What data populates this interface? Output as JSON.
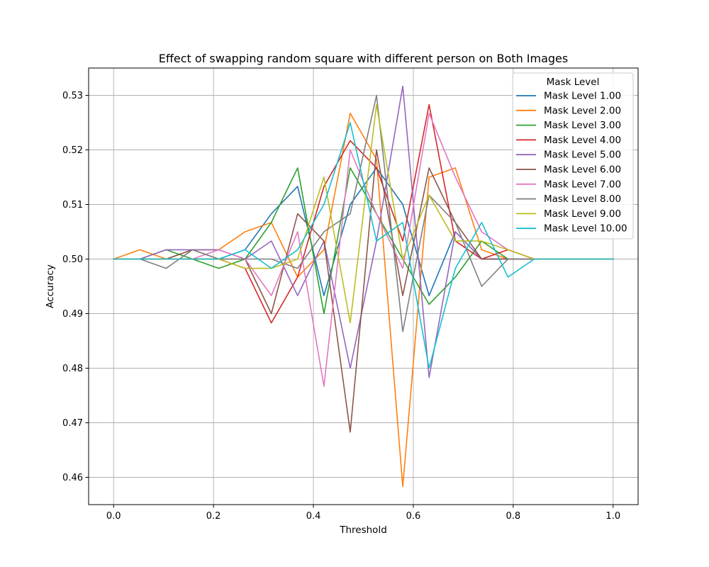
{
  "chart_data": {
    "type": "line",
    "title": "Effect of swapping random square with different person on Both Images",
    "xlabel": "Threshold",
    "ylabel": "Accuracy",
    "xlim": [
      -0.05,
      1.05
    ],
    "ylim": [
      0.455,
      0.535
    ],
    "xticks": [
      0.0,
      0.2,
      0.4,
      0.6,
      0.8,
      1.0
    ],
    "xtick_labels": [
      "0.0",
      "0.2",
      "0.4",
      "0.6",
      "0.8",
      "1.0"
    ],
    "yticks": [
      0.46,
      0.47,
      0.48,
      0.49,
      0.5,
      0.51,
      0.52,
      0.53
    ],
    "ytick_labels": [
      "0.46",
      "0.47",
      "0.48",
      "0.49",
      "0.50",
      "0.51",
      "0.52",
      "0.53"
    ],
    "grid": true,
    "legend": {
      "title": "Mask Level",
      "placement": "top-right"
    },
    "x": [
      0.0,
      0.0526,
      0.1053,
      0.1579,
      0.2105,
      0.2632,
      0.3158,
      0.3684,
      0.4211,
      0.4737,
      0.5263,
      0.5789,
      0.6316,
      0.6842,
      0.7368,
      0.7895,
      0.8421,
      0.8947,
      0.9474,
      1.0
    ],
    "series": [
      {
        "name": "Mask Level 1.00",
        "color": "#1f77b4",
        "values": [
          0.5,
          0.5,
          0.5,
          0.5,
          0.5,
          0.5017,
          0.5083,
          0.5133,
          0.4933,
          0.51,
          0.5167,
          0.51,
          0.4933,
          0.505,
          0.5,
          0.5,
          0.5,
          0.5,
          0.5,
          0.5
        ]
      },
      {
        "name": "Mask Level 2.00",
        "color": "#ff7f0e",
        "values": [
          0.5,
          0.5017,
          0.5,
          0.5017,
          0.5017,
          0.505,
          0.5067,
          0.4967,
          0.5017,
          0.5267,
          0.5183,
          0.4583,
          0.515,
          0.5167,
          0.5017,
          0.5,
          0.5,
          0.5,
          0.5,
          0.5
        ]
      },
      {
        "name": "Mask Level 3.00",
        "color": "#2ca02c",
        "values": [
          0.5,
          0.5,
          0.5017,
          0.5,
          0.4983,
          0.5,
          0.5067,
          0.5167,
          0.49,
          0.5167,
          0.5083,
          0.5,
          0.4917,
          0.4967,
          0.5033,
          0.5,
          0.5,
          0.5,
          0.5,
          0.5
        ]
      },
      {
        "name": "Mask Level 4.00",
        "color": "#d62728",
        "values": [
          0.5,
          0.5,
          0.5,
          0.5,
          0.5,
          0.4983,
          0.4883,
          0.4967,
          0.5133,
          0.5217,
          0.5167,
          0.5033,
          0.5283,
          0.5033,
          0.5,
          0.5017,
          0.5,
          0.5,
          0.5,
          0.5
        ]
      },
      {
        "name": "Mask Level 5.00",
        "color": "#9467bd",
        "values": [
          0.5,
          0.5,
          0.5017,
          0.5017,
          0.5017,
          0.5,
          0.5033,
          0.4933,
          0.5033,
          0.48,
          0.5033,
          0.5317,
          0.4783,
          0.505,
          0.5,
          0.5,
          0.5,
          0.5,
          0.5,
          0.5
        ]
      },
      {
        "name": "Mask Level 6.00",
        "color": "#8c564b",
        "values": [
          0.5,
          0.5,
          0.5,
          0.5017,
          0.5,
          0.5,
          0.49,
          0.5083,
          0.5033,
          0.4683,
          0.52,
          0.4933,
          0.5167,
          0.5067,
          0.5,
          0.5,
          0.5,
          0.5,
          0.5,
          0.5
        ]
      },
      {
        "name": "Mask Level 7.00",
        "color": "#e377c2",
        "values": [
          0.5,
          0.5,
          0.5,
          0.5,
          0.5017,
          0.5,
          0.4933,
          0.505,
          0.4767,
          0.52,
          0.5083,
          0.4983,
          0.5267,
          0.515,
          0.505,
          0.5017,
          0.5,
          0.5,
          0.5,
          0.5
        ]
      },
      {
        "name": "Mask Level 8.00",
        "color": "#7f7f7f",
        "values": [
          0.5,
          0.5,
          0.4983,
          0.5017,
          0.5,
          0.5,
          0.5,
          0.4983,
          0.505,
          0.5083,
          0.53,
          0.4867,
          0.5117,
          0.5067,
          0.495,
          0.5,
          0.5,
          0.5,
          0.5,
          0.5
        ]
      },
      {
        "name": "Mask Level 9.00",
        "color": "#bcbd22",
        "values": [
          0.5,
          0.5,
          0.5,
          0.5,
          0.5,
          0.4983,
          0.4983,
          0.5,
          0.515,
          0.4883,
          0.5283,
          0.5,
          0.5117,
          0.5033,
          0.5033,
          0.5017,
          0.5,
          0.5,
          0.5,
          0.5
        ]
      },
      {
        "name": "Mask Level 10.00",
        "color": "#17becf",
        "values": [
          0.5,
          0.5,
          0.5,
          0.5,
          0.5,
          0.5017,
          0.4983,
          0.5017,
          0.51,
          0.525,
          0.5033,
          0.5067,
          0.48,
          0.4983,
          0.5067,
          0.4967,
          0.5,
          0.5,
          0.5,
          0.5
        ]
      }
    ]
  }
}
